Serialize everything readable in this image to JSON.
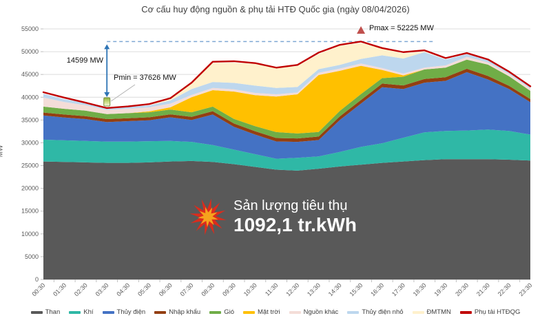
{
  "title": "Cơ cấu huy động nguồn & phụ tải HTĐ Quốc gia (ngày 08/04/2026)",
  "overlay": {
    "line1": "Sản lượng tiêu thụ",
    "line2": "1092,1 tr.kWh"
  },
  "annotations": {
    "pmax": "Pmax = 52225 MW",
    "pmin": "Pmin = 37626 MW",
    "delta": "14599 MW"
  },
  "chart_data": {
    "type": "area",
    "stacked": true,
    "title": "Cơ cấu huy động nguồn & phụ tải HTĐ Quốc gia (ngày 08/04/2026)",
    "ylabel": "MW",
    "ylim": [
      0,
      55000
    ],
    "y_tick_step": 5000,
    "grid": true,
    "legend_position": "bottom",
    "x": [
      "00:30",
      "01:30",
      "02:30",
      "03:30",
      "04:30",
      "05:30",
      "06:30",
      "07:30",
      "08:30",
      "09:30",
      "10:30",
      "11:30",
      "12:30",
      "13:30",
      "14:30",
      "15:30",
      "16:30",
      "17:30",
      "18:30",
      "19:30",
      "20:30",
      "21:30",
      "22:30",
      "23:30"
    ],
    "series": [
      {
        "name": "Than",
        "color": "#595959",
        "values": [
          25900,
          25800,
          25700,
          25600,
          25600,
          25700,
          25900,
          26000,
          25800,
          25300,
          24700,
          24100,
          23900,
          24300,
          24800,
          25200,
          25600,
          25900,
          26200,
          26400,
          26400,
          26400,
          26300,
          26100
        ]
      },
      {
        "name": "Khí",
        "color": "#2FB8A6",
        "values": [
          4800,
          4750,
          4700,
          4650,
          4650,
          4650,
          4500,
          4200,
          3700,
          3200,
          2800,
          2400,
          2800,
          2700,
          3200,
          3900,
          4300,
          5200,
          6100,
          6200,
          6300,
          6500,
          6300,
          5700
        ]
      },
      {
        "name": "Thủy điện",
        "color": "#4472C4",
        "values": [
          5300,
          5000,
          4800,
          4300,
          4500,
          4600,
          5200,
          4800,
          6700,
          5000,
          4300,
          3800,
          3500,
          3600,
          7000,
          9500,
          12300,
          10700,
          10900,
          11000,
          12800,
          11000,
          9200,
          7100
        ]
      },
      {
        "name": "Nhập khẩu",
        "color": "#933F12",
        "values": [
          650,
          650,
          650,
          650,
          650,
          650,
          650,
          700,
          750,
          750,
          750,
          750,
          750,
          770,
          800,
          800,
          800,
          800,
          800,
          800,
          760,
          760,
          700,
          700
        ]
      },
      {
        "name": "Gió",
        "color": "#70AD47",
        "values": [
          1300,
          1250,
          1200,
          1100,
          1100,
          1100,
          1050,
          1000,
          1000,
          1000,
          1100,
          1300,
          1100,
          1000,
          1200,
          1300,
          1200,
          1900,
          2100,
          2100,
          2000,
          2500,
          2100,
          1800
        ]
      },
      {
        "name": "Mặt trời",
        "color": "#FFC000",
        "values": [
          0,
          0,
          0,
          0,
          0,
          200,
          500,
          3300,
          3600,
          6000,
          6800,
          7800,
          8600,
          12500,
          8800,
          6200,
          1800,
          300,
          0,
          0,
          0,
          0,
          0,
          0
        ]
      },
      {
        "name": "Nguồn khác",
        "color": "#F4DDD8",
        "values": [
          2000,
          1500,
          1200,
          900,
          1000,
          900,
          800,
          500,
          500,
          500,
          500,
          500,
          400,
          500,
          500,
          500,
          400,
          400,
          400,
          500,
          600,
          500,
          500,
          500
        ]
      },
      {
        "name": "Thủy điện nhỏ",
        "color": "#BDD7EE",
        "values": [
          800,
          600,
          500,
          400,
          400,
          400,
          700,
          1300,
          1300,
          1400,
          1600,
          1400,
          1200,
          800,
          800,
          1000,
          2800,
          3300,
          3400,
          1300,
          600,
          500,
          400,
          400
        ]
      },
      {
        "name": "ĐMTMN",
        "color": "#FFF1CC",
        "values": [
          0,
          0,
          0,
          0,
          0,
          0,
          400,
          1200,
          4200,
          4400,
          4800,
          4400,
          4600,
          3300,
          4200,
          3500,
          1500,
          1100,
          100,
          0,
          0,
          0,
          0,
          0
        ]
      }
    ],
    "load_line": {
      "name": "Phụ tải HTĐQG",
      "color": "#C00000",
      "values": [
        41100,
        39900,
        38800,
        37626,
        38000,
        38500,
        39800,
        43200,
        47800,
        47900,
        47500,
        46500,
        47100,
        49800,
        51500,
        52225,
        50800,
        49900,
        50300,
        48600,
        49700,
        48300,
        45600,
        42400
      ]
    },
    "pmax": {
      "value": 52225,
      "index": 15
    },
    "pmin": {
      "value": 37626,
      "index": 3
    },
    "delta_mw": 14599
  },
  "legend": {
    "items": [
      {
        "label": "Than"
      },
      {
        "label": "Khí"
      },
      {
        "label": "Thủy điện"
      },
      {
        "label": "Nhập khẩu"
      },
      {
        "label": "Gió"
      },
      {
        "label": "Mặt trời"
      },
      {
        "label": "Nguồn khác"
      },
      {
        "label": "Thủy điện nhỏ"
      },
      {
        "label": "ĐMTMN"
      },
      {
        "label": "Phụ tải HTĐQG"
      }
    ]
  }
}
